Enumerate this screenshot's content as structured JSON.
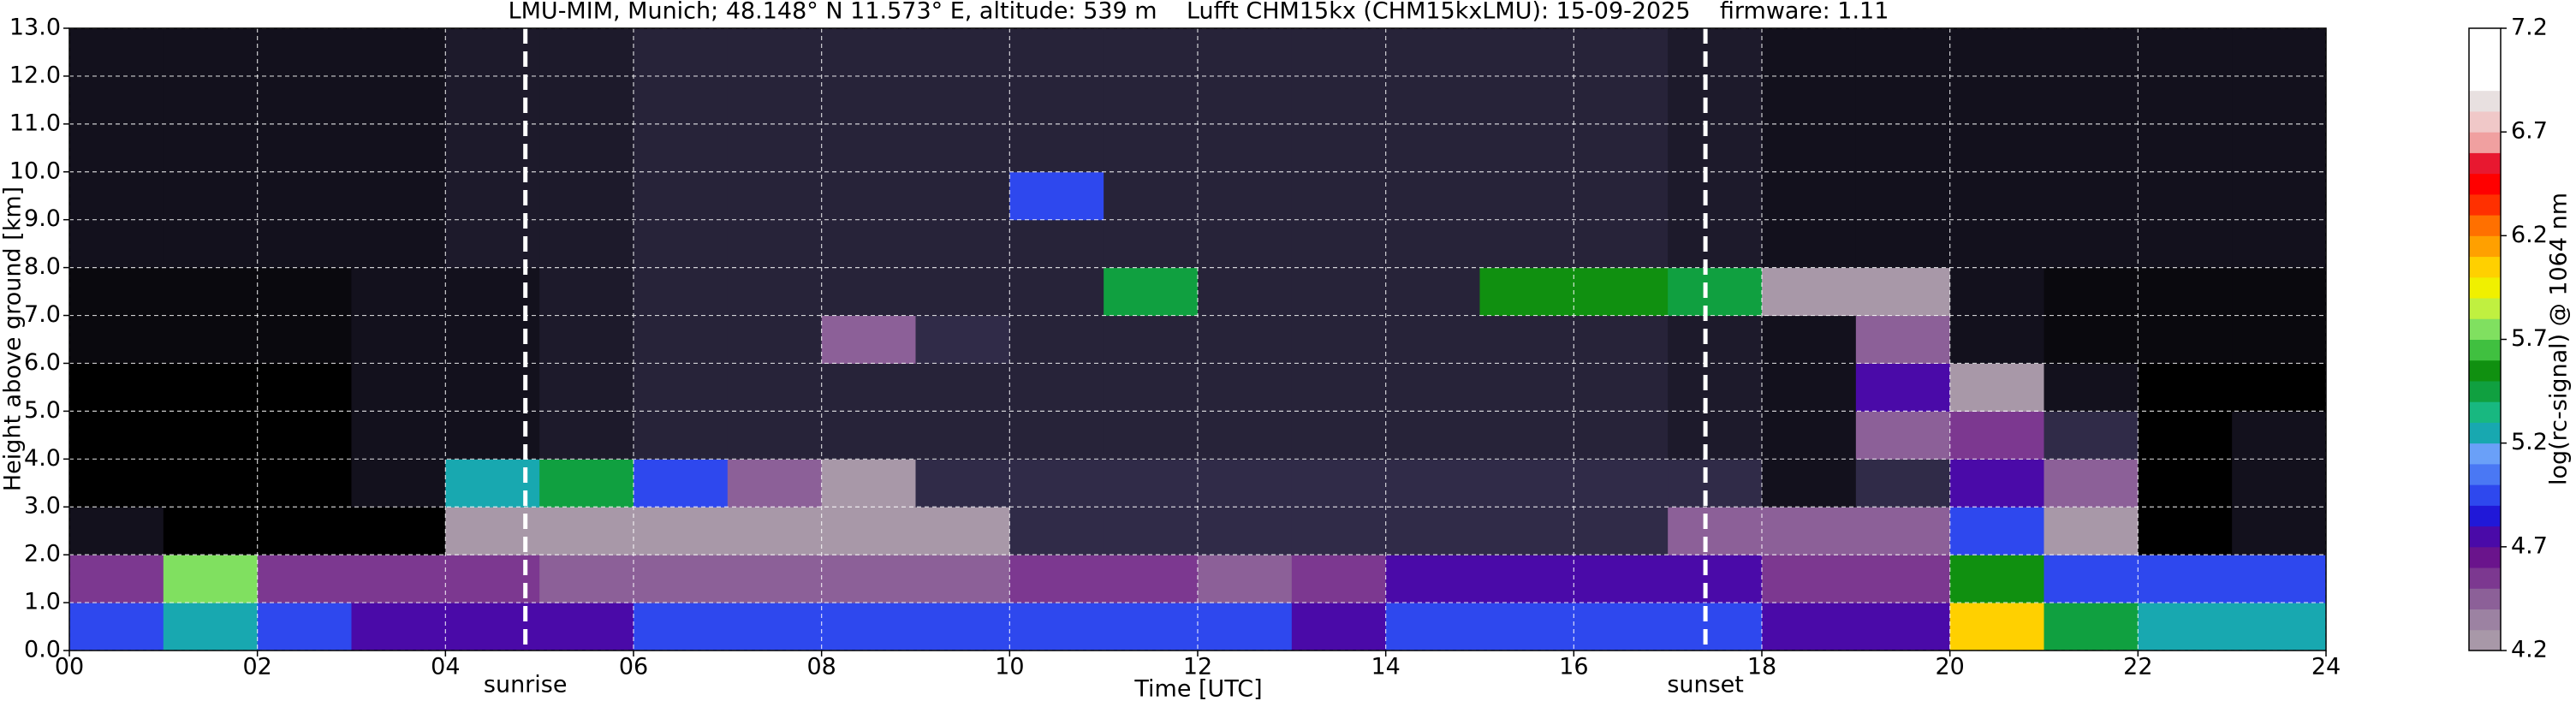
{
  "chart_data": {
    "type": "heatmap",
    "title": "LMU-MIM, Munich; 48.148° N 11.573° E, altitude: 539 m    Lufft CHM15kx (CHM15kxLMU): 15-09-2025    firmware: 1.11",
    "xlabel": "Time [UTC]",
    "ylabel": "Height above ground [km]",
    "colorbar_label": "log(rc-signal) @ 1064 nm",
    "x": [
      0,
      1,
      2,
      3,
      4,
      5,
      6,
      7,
      8,
      9,
      10,
      11,
      12,
      13,
      14,
      15,
      16,
      17,
      18,
      19,
      20,
      21,
      22,
      23,
      24
    ],
    "y": [
      0,
      1,
      2,
      3,
      4,
      5,
      6,
      7,
      8,
      9,
      10,
      11,
      12,
      13
    ],
    "z": [
      [
        5.0,
        5.3,
        4.9,
        4.8,
        4.7,
        4.8,
        4.9,
        4.9,
        4.9,
        4.9,
        4.9,
        4.9,
        4.9,
        4.8,
        4.9,
        4.9,
        4.9,
        4.9,
        4.8,
        4.8,
        6.0,
        5.5,
        5.3,
        5.2
      ],
      [
        4.6,
        5.8,
        4.6,
        4.6,
        4.6,
        4.5,
        4.5,
        4.5,
        4.5,
        4.5,
        4.6,
        4.6,
        4.5,
        4.6,
        4.8,
        4.8,
        4.8,
        4.7,
        4.6,
        4.6,
        5.6,
        4.9,
        4.9,
        4.9
      ],
      [
        4.0,
        3.9,
        3.9,
        3.9,
        4.2,
        4.2,
        4.2,
        4.2,
        4.2,
        4.2,
        4.15,
        4.15,
        4.15,
        4.15,
        4.15,
        4.15,
        4.15,
        4.5,
        4.5,
        4.4,
        5.0,
        4.3,
        3.9,
        4.0
      ],
      [
        3.9,
        3.9,
        3.9,
        4.0,
        5.2,
        5.4,
        5.0,
        4.4,
        4.3,
        4.15,
        4.15,
        4.15,
        4.15,
        4.15,
        4.15,
        4.15,
        4.15,
        4.15,
        4.0,
        4.15,
        4.8,
        4.5,
        3.9,
        4.0
      ],
      [
        3.9,
        3.9,
        3.9,
        4.0,
        4.0,
        4.05,
        4.1,
        4.1,
        4.1,
        4.1,
        4.1,
        4.1,
        4.1,
        4.1,
        4.1,
        4.1,
        4.1,
        4.05,
        4.0,
        4.5,
        4.6,
        4.15,
        3.9,
        4.0
      ],
      [
        3.9,
        3.9,
        3.9,
        4.0,
        4.0,
        4.05,
        4.1,
        4.1,
        4.1,
        4.1,
        4.1,
        4.1,
        4.1,
        4.1,
        4.1,
        4.1,
        4.1,
        4.05,
        4.0,
        4.8,
        4.2,
        4.0,
        3.9,
        3.9
      ],
      [
        3.95,
        3.95,
        3.95,
        4.0,
        4.0,
        4.05,
        4.1,
        4.1,
        4.4,
        4.15,
        4.1,
        4.1,
        4.1,
        4.1,
        4.1,
        4.1,
        4.1,
        4.05,
        4.0,
        4.4,
        4.0,
        3.95,
        3.95,
        3.95
      ],
      [
        3.95,
        3.95,
        3.95,
        4.0,
        4.0,
        4.05,
        4.1,
        4.1,
        4.1,
        4.1,
        4.1,
        5.5,
        4.1,
        4.1,
        4.1,
        5.6,
        5.6,
        5.4,
        4.2,
        4.3,
        4.0,
        3.95,
        3.95,
        3.95
      ],
      [
        4.0,
        4.0,
        4.0,
        4.0,
        4.05,
        4.05,
        4.1,
        4.1,
        4.1,
        4.1,
        4.1,
        4.1,
        4.1,
        4.1,
        4.1,
        4.1,
        4.1,
        4.05,
        4.0,
        4.0,
        4.0,
        4.0,
        4.0,
        4.0
      ],
      [
        4.0,
        4.0,
        4.0,
        4.0,
        4.05,
        4.05,
        4.1,
        4.1,
        4.1,
        4.1,
        5.0,
        4.1,
        4.1,
        4.1,
        4.1,
        4.1,
        4.1,
        4.05,
        4.0,
        4.0,
        4.0,
        4.0,
        4.0,
        4.0
      ],
      [
        4.0,
        4.0,
        4.0,
        4.0,
        4.05,
        4.05,
        4.1,
        4.1,
        4.1,
        4.1,
        4.1,
        4.1,
        4.1,
        4.1,
        4.1,
        4.1,
        4.1,
        4.05,
        4.0,
        4.0,
        4.0,
        4.0,
        4.0,
        4.0
      ],
      [
        4.0,
        4.0,
        4.0,
        4.0,
        4.05,
        4.05,
        4.1,
        4.1,
        4.1,
        4.1,
        4.1,
        4.1,
        4.1,
        4.1,
        4.1,
        4.1,
        4.1,
        4.05,
        4.0,
        4.0,
        4.0,
        4.0,
        4.0,
        4.0
      ],
      [
        4.0,
        4.0,
        4.0,
        4.0,
        4.05,
        4.05,
        4.1,
        4.1,
        4.1,
        4.1,
        4.1,
        4.1,
        4.1,
        4.1,
        4.1,
        4.1,
        4.1,
        4.05,
        4.0,
        4.0,
        4.0,
        4.0,
        4.0,
        4.0
      ]
    ],
    "xlim": [
      0,
      24
    ],
    "ylim": [
      0,
      13
    ],
    "clim": [
      4.2,
      7.2
    ],
    "xticks": [
      {
        "value": 0,
        "label": "00"
      },
      {
        "value": 2,
        "label": "02"
      },
      {
        "value": 4,
        "label": "04"
      },
      {
        "value": 6,
        "label": "06"
      },
      {
        "value": 8,
        "label": "08"
      },
      10,
      12,
      14,
      16,
      18,
      20,
      22,
      24
    ],
    "yticks": [
      {
        "value": 0,
        "label": "0.0"
      },
      {
        "value": 1,
        "label": "1.0"
      },
      {
        "value": 2,
        "label": "2.0"
      },
      {
        "value": 3,
        "label": "3.0"
      },
      {
        "value": 4,
        "label": "4.0"
      },
      {
        "value": 5,
        "label": "5.0"
      },
      {
        "value": 6,
        "label": "6.0"
      },
      {
        "value": 7,
        "label": "7.0"
      },
      {
        "value": 8,
        "label": "8.0"
      },
      {
        "value": 9,
        "label": "9.0"
      },
      {
        "value": 10,
        "label": "10.0"
      },
      {
        "value": 11,
        "label": "11.0"
      },
      {
        "value": 12,
        "label": "12.0"
      },
      {
        "value": 13,
        "label": "13.0"
      }
    ],
    "cticks": [
      4.2,
      4.7,
      5.2,
      5.7,
      6.2,
      6.7,
      7.2
    ],
    "colormap": [
      "#a898a8",
      "#9c82a2",
      "#8c6098",
      "#7c3890",
      "#6a148c",
      "#4a0aa8",
      "#2018d8",
      "#2e48ee",
      "#4a78f4",
      "#6aa0f8",
      "#18a8b0",
      "#18b880",
      "#10a040",
      "#109010",
      "#40c040",
      "#80e060",
      "#c0f040",
      "#f0f000",
      "#ffd000",
      "#ffa000",
      "#ff7000",
      "#ff3000",
      "#ff0000",
      "#e81830",
      "#f0a0a0",
      "#f0c8c8",
      "#e8e0e0",
      "#ffffff",
      "#ffffff",
      "#ffffff"
    ],
    "under_color": "#000000",
    "grid": true,
    "vlines": [
      {
        "x": 4.85,
        "label": "sunrise"
      },
      {
        "x": 17.4,
        "label": "sunset"
      }
    ]
  }
}
